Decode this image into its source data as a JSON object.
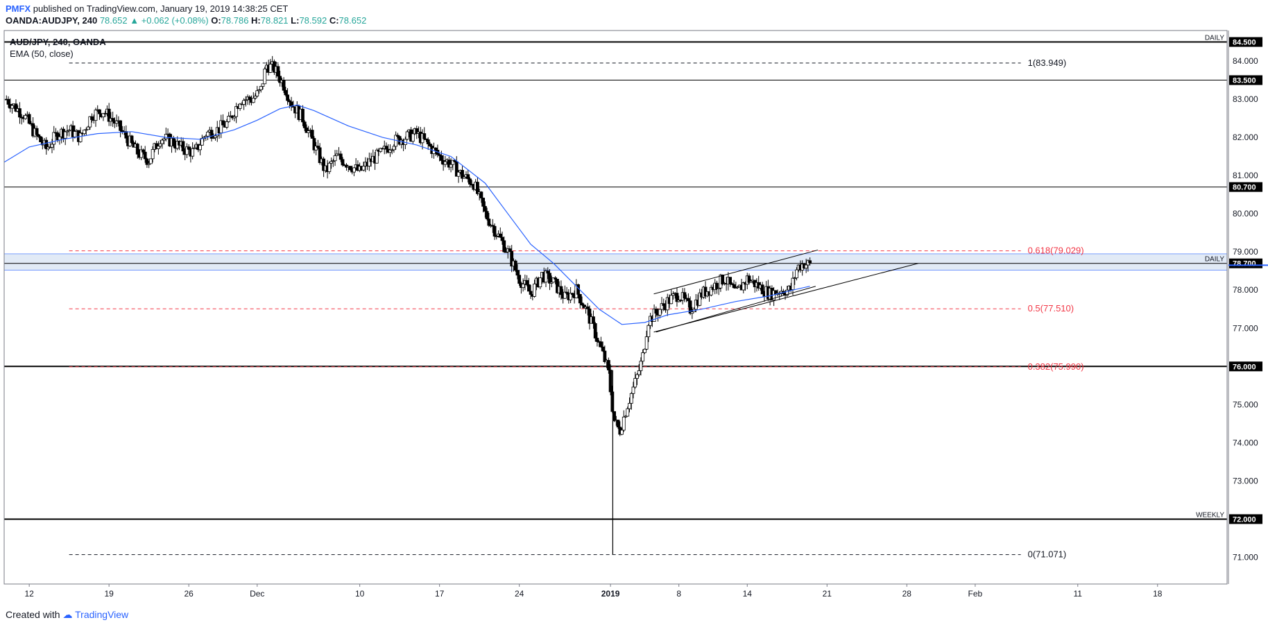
{
  "header": {
    "publisher": "PMFX",
    "published_text": "published on TradingView.com, January 19, 2019 14:38:25 CET",
    "symbol": "OANDA:AUDJPY, 240",
    "last": "78.652",
    "change": "+0.062 (+0.08%)",
    "o_label": "O:",
    "o": "78.786",
    "h_label": "H:",
    "h": "78.821",
    "l_label": "L:",
    "l": "78.592",
    "c_label": "C:",
    "c": "78.652"
  },
  "legend": {
    "title": "AUD/JPY, 240, OANDA",
    "indicator": "EMA (50, close)"
  },
  "footer": {
    "created_with": "Created with",
    "brand": "TradingView"
  },
  "colors": {
    "up": "#26a69a",
    "bull_candle": "#ffffff",
    "bear_candle": "#000000",
    "ema": "#2962ff",
    "fib": "#f23645",
    "tag_bg": "#000000",
    "zone": "#c8d9ef"
  },
  "chart_data": {
    "type": "candlestick",
    "symbol": "AUD/JPY",
    "timeframe": "240",
    "ylim": [
      70.3,
      84.8
    ],
    "y_ticks": [
      "71.000",
      "72.000",
      "73.000",
      "74.000",
      "75.000",
      "76.000",
      "77.000",
      "78.000",
      "79.000",
      "80.000",
      "81.000",
      "82.000",
      "83.000",
      "84.000"
    ],
    "x_ticks": [
      {
        "label": "12",
        "day": 12
      },
      {
        "label": "19",
        "day": 19
      },
      {
        "label": "26",
        "day": 26
      },
      {
        "label": "Dec",
        "day": 32
      },
      {
        "label": "10",
        "day": 41
      },
      {
        "label": "17",
        "day": 48
      },
      {
        "label": "24",
        "day": 55
      },
      {
        "label": "2019",
        "day": 63
      },
      {
        "label": "8",
        "day": 69
      },
      {
        "label": "14",
        "day": 75
      },
      {
        "label": "21",
        "day": 82
      },
      {
        "label": "28",
        "day": 89
      },
      {
        "label": "Feb",
        "day": 95
      },
      {
        "label": "11",
        "day": 104
      },
      {
        "label": "18",
        "day": 111
      }
    ],
    "x_range_days": [
      9.8,
      117.1
    ],
    "path_points": [
      [
        10,
        83.0
      ],
      [
        11.5,
        82.6
      ],
      [
        12.5,
        82.1
      ],
      [
        13.5,
        81.7
      ],
      [
        14.5,
        82.1
      ],
      [
        15.5,
        82.2
      ],
      [
        16.5,
        82.0
      ],
      [
        17.5,
        82.6
      ],
      [
        18.5,
        82.7
      ],
      [
        19.5,
        82.4
      ],
      [
        20.5,
        82.0
      ],
      [
        21.5,
        81.6
      ],
      [
        22.5,
        81.4
      ],
      [
        23.5,
        82.0
      ],
      [
        24.5,
        81.9
      ],
      [
        25.5,
        81.7
      ],
      [
        26.5,
        81.6
      ],
      [
        27.5,
        82.1
      ],
      [
        28.5,
        82.2
      ],
      [
        29.5,
        82.4
      ],
      [
        30.5,
        83.0
      ],
      [
        31.5,
        83.0
      ],
      [
        32.3,
        83.2
      ],
      [
        32.8,
        83.9
      ],
      [
        33.5,
        83.8
      ],
      [
        34.3,
        83.4
      ],
      [
        35.0,
        82.9
      ],
      [
        36.0,
        82.5
      ],
      [
        37.0,
        81.8
      ],
      [
        38.0,
        81.1
      ],
      [
        39.0,
        81.5
      ],
      [
        40.0,
        81.3
      ],
      [
        41.0,
        81.1
      ],
      [
        42.0,
        81.4
      ],
      [
        43.0,
        81.6
      ],
      [
        44.0,
        81.9
      ],
      [
        45.0,
        82.0
      ],
      [
        46.0,
        82.1
      ],
      [
        47.0,
        81.8
      ],
      [
        48.0,
        81.5
      ],
      [
        49.0,
        81.3
      ],
      [
        50.0,
        81.0
      ],
      [
        51.0,
        80.8
      ],
      [
        52.0,
        80.0
      ],
      [
        53.0,
        79.5
      ],
      [
        54.0,
        79.0
      ],
      [
        55.0,
        78.3
      ],
      [
        56.0,
        77.9
      ],
      [
        57.0,
        78.4
      ],
      [
        58.0,
        78.2
      ],
      [
        59.0,
        77.8
      ],
      [
        60.0,
        78.0
      ],
      [
        61.0,
        77.4
      ],
      [
        62.0,
        76.6
      ],
      [
        62.8,
        75.9
      ],
      [
        63.3,
        74.6
      ],
      [
        63.8,
        74.3
      ],
      [
        64.5,
        75.0
      ],
      [
        65.2,
        75.6
      ],
      [
        65.8,
        76.2
      ],
      [
        66.3,
        77.2
      ],
      [
        67.0,
        77.4
      ],
      [
        68.0,
        77.7
      ],
      [
        69.0,
        77.9
      ],
      [
        70.0,
        77.5
      ],
      [
        71.0,
        77.9
      ],
      [
        72.0,
        78.1
      ],
      [
        73.0,
        78.3
      ],
      [
        74.0,
        77.9
      ],
      [
        75.0,
        78.3
      ],
      [
        76.0,
        78.1
      ],
      [
        77.0,
        77.9
      ],
      [
        78.0,
        78.0
      ],
      [
        78.8,
        78.0
      ],
      [
        79.4,
        78.6
      ],
      [
        80.0,
        78.7
      ],
      [
        80.6,
        78.65
      ]
    ],
    "wicks": [
      {
        "day": 63.2,
        "low": 71.071,
        "high": 75.9
      }
    ],
    "ema_points": [
      [
        9.8,
        81.35
      ],
      [
        12,
        81.75
      ],
      [
        15,
        81.95
      ],
      [
        18,
        82.1
      ],
      [
        21,
        82.15
      ],
      [
        24,
        82.0
      ],
      [
        27,
        81.95
      ],
      [
        30,
        82.2
      ],
      [
        32,
        82.45
      ],
      [
        34,
        82.75
      ],
      [
        35.5,
        82.85
      ],
      [
        37,
        82.7
      ],
      [
        40,
        82.3
      ],
      [
        43,
        82.0
      ],
      [
        46,
        81.8
      ],
      [
        49,
        81.5
      ],
      [
        52,
        80.8
      ],
      [
        54,
        80.0
      ],
      [
        56,
        79.2
      ],
      [
        58,
        78.7
      ],
      [
        60,
        78.1
      ],
      [
        62,
        77.5
      ],
      [
        64,
        77.1
      ],
      [
        66,
        77.15
      ],
      [
        68,
        77.35
      ],
      [
        71,
        77.5
      ],
      [
        74,
        77.7
      ],
      [
        77,
        77.85
      ],
      [
        79,
        78.0
      ],
      [
        80.5,
        78.1
      ]
    ],
    "channel": {
      "upper": [
        [
          66.8,
          77.9
        ],
        [
          81.2,
          79.05
        ]
      ],
      "lower": [
        [
          67.0,
          76.9
        ],
        [
          81.0,
          78.1
        ]
      ],
      "extended_lower": [
        [
          66.8,
          76.9
        ],
        [
          90.0,
          78.7
        ]
      ]
    },
    "horizontal_levels": [
      {
        "value": 84.5,
        "label": "84.500",
        "tag": "DAILY",
        "weight": 2
      },
      {
        "value": 83.5,
        "label": "83.500",
        "tag": "",
        "weight": 1
      },
      {
        "value": 80.7,
        "label": "80.700",
        "tag": "",
        "weight": 1
      },
      {
        "value": 78.7,
        "label": "78.700",
        "tag": "DAILY",
        "weight": 1
      },
      {
        "value": 76.0,
        "label": "76.000",
        "tag": "",
        "weight": 2
      },
      {
        "value": 72.0,
        "label": "72.000",
        "tag": "WEEKLY",
        "weight": 2
      }
    ],
    "zone": {
      "from": 78.52,
      "to": 78.95
    },
    "fib_levels": [
      {
        "value": 83.949,
        "label": "1(83.949)",
        "color": "#131722"
      },
      {
        "value": 79.029,
        "label": "0.618(79.029)",
        "color": "#f23645"
      },
      {
        "value": 77.51,
        "label": "0.5(77.510)",
        "color": "#f23645"
      },
      {
        "value": 75.99,
        "label": "0.382(75.990)",
        "color": "#f23645"
      },
      {
        "value": 71.071,
        "label": "0(71.071)",
        "color": "#131722"
      }
    ],
    "fib_start_day": 15.5,
    "fib_end_day": 99.0,
    "current_price": 78.652
  }
}
